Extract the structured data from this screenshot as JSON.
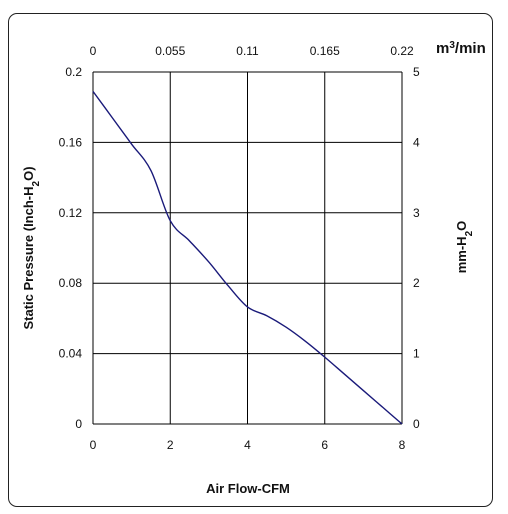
{
  "chart_data": {
    "type": "line",
    "xlabel": "Air Flow-CFM",
    "ylabel_left": "Static Pressure (Inch-H2O)",
    "ylabel_right": "mm-H2O",
    "top_axis_unit": "m3/min",
    "x_ticks": [
      "0",
      "2",
      "4",
      "6",
      "8"
    ],
    "x_top_ticks": [
      "0",
      "0.055",
      "0.11",
      "0.165",
      "0.22"
    ],
    "y_left_ticks": [
      "0",
      "0.04",
      "0.08",
      "0.12",
      "0.16",
      "0.2"
    ],
    "y_right_ticks": [
      "0",
      "1",
      "2",
      "3",
      "4",
      "5"
    ],
    "xlim": [
      0,
      8
    ],
    "ylim": [
      0,
      0.2
    ],
    "x_top_lim": [
      0,
      0.22
    ],
    "y_right_lim": [
      0,
      5
    ],
    "grid": true,
    "colors": {
      "line": "#1a1a7a",
      "grid": "#000000"
    },
    "series": [
      {
        "x": [
          0,
          0.5,
          1,
          1.5,
          2,
          2.5,
          3,
          3.5,
          4,
          4.5,
          5,
          5.5,
          6,
          6.5,
          7,
          7.5,
          8
        ],
        "y": [
          0.189,
          0.174,
          0.159,
          0.144,
          0.1155,
          0.104,
          0.092,
          0.0785,
          0.0665,
          0.0615,
          0.055,
          0.047,
          0.038,
          0.0285,
          0.019,
          0.0095,
          0
        ]
      }
    ]
  }
}
